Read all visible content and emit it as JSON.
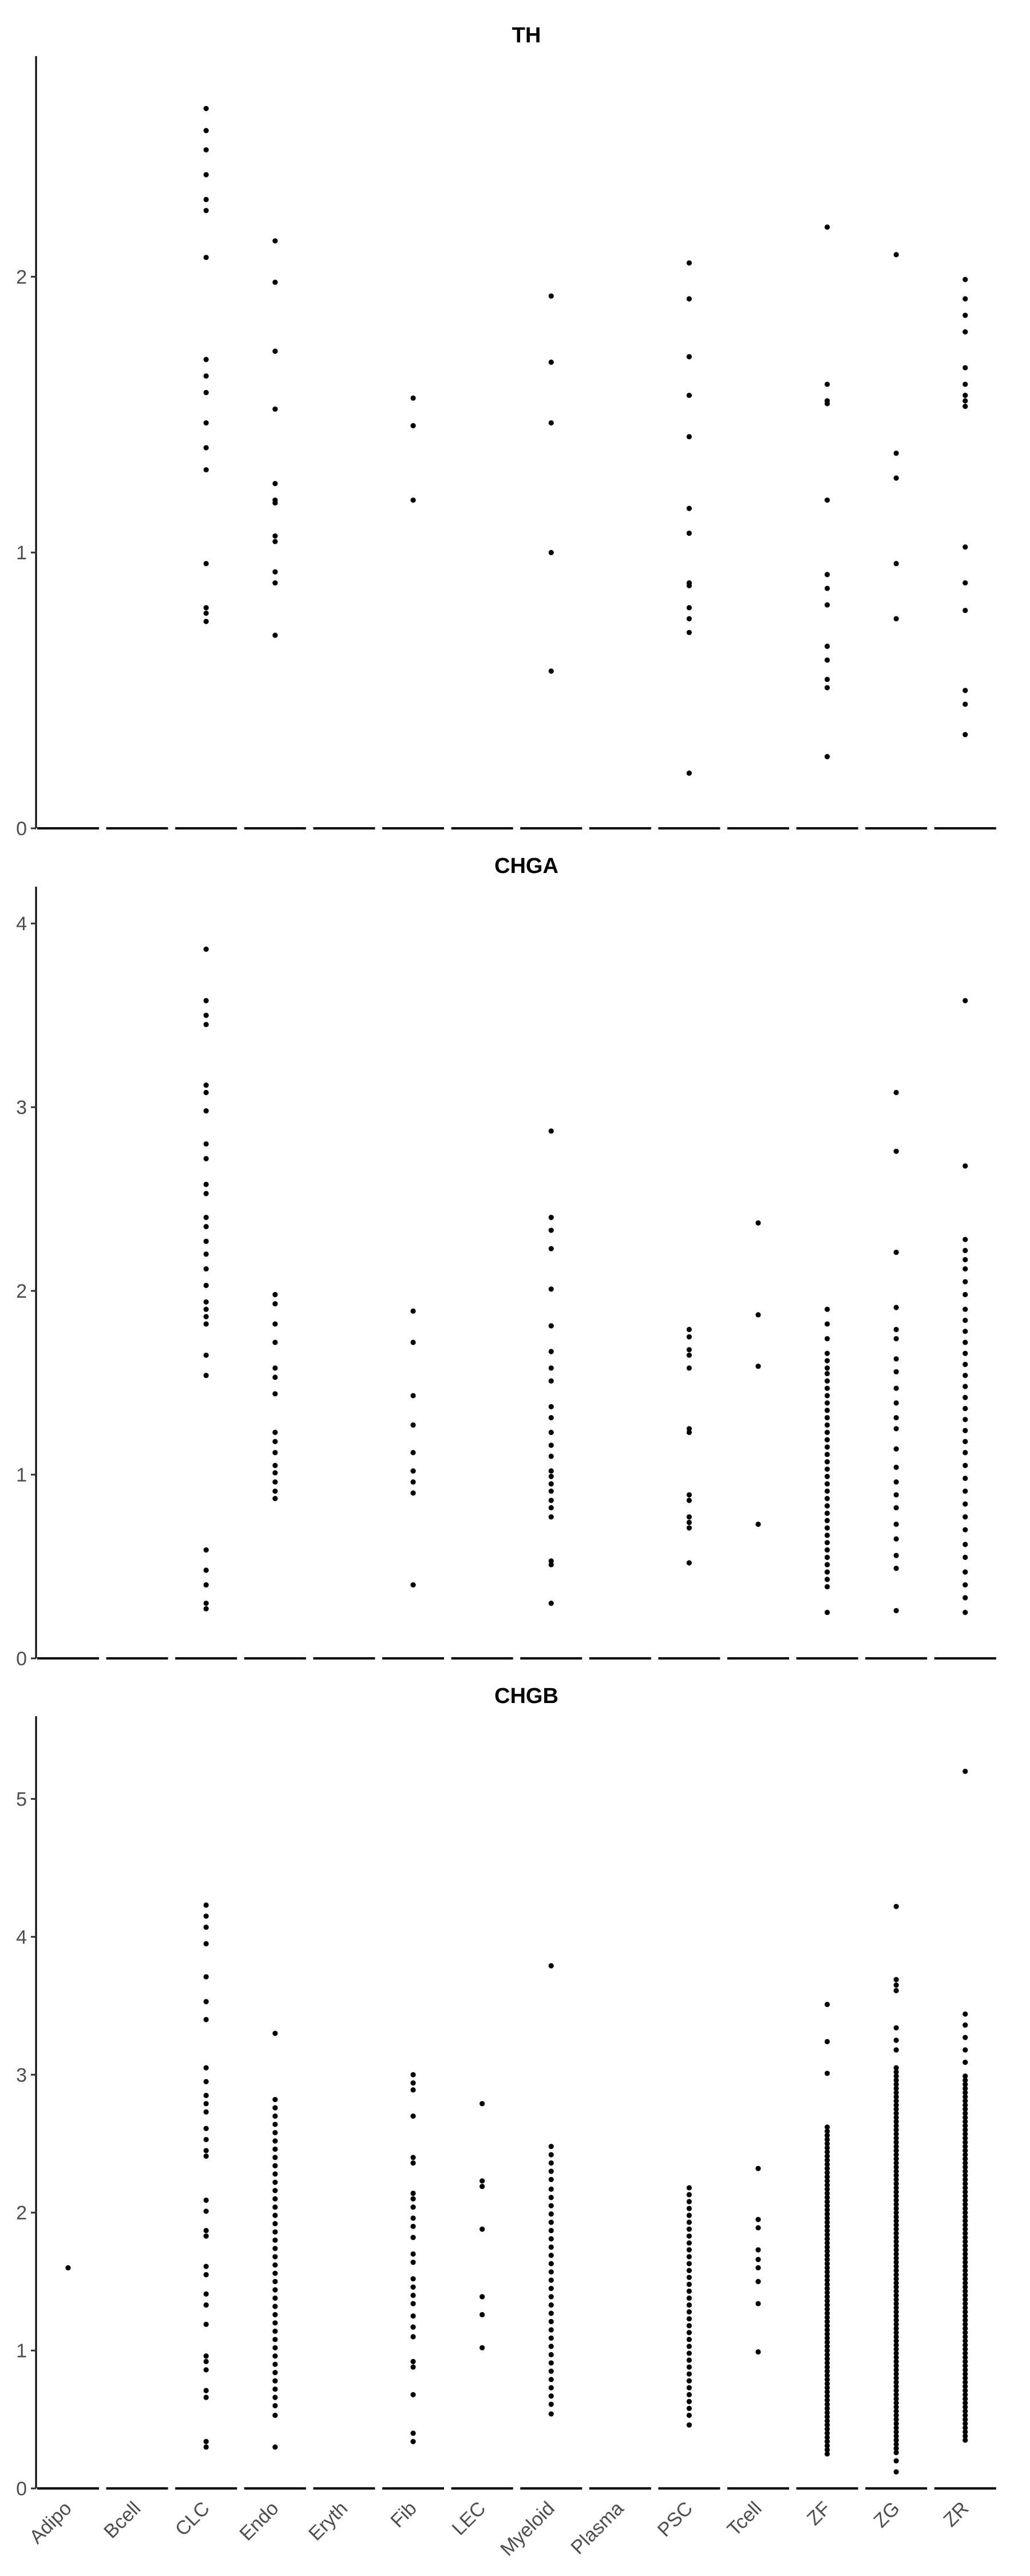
{
  "categories": [
    "Adipo",
    "Bcell",
    "CLC",
    "Endo",
    "Eryth",
    "Fib",
    "LEC",
    "Myeloid",
    "Plasma",
    "PSC",
    "Tcell",
    "ZF",
    "ZG",
    "ZR"
  ],
  "chart_data": [
    {
      "type": "scatter",
      "title": "TH",
      "xlabel": "",
      "ylabel": "",
      "ylim": [
        0,
        2.8
      ],
      "yticks": [
        0,
        1,
        2
      ],
      "categories": [
        "Adipo",
        "Bcell",
        "CLC",
        "Endo",
        "Eryth",
        "Fib",
        "LEC",
        "Myeloid",
        "Plasma",
        "PSC",
        "Tcell",
        "ZF",
        "ZG",
        "ZR"
      ],
      "points": {
        "Adipo": [],
        "Bcell": [],
        "CLC": [
          2.61,
          2.53,
          2.46,
          2.37,
          2.28,
          2.24,
          2.07,
          1.7,
          1.64,
          1.58,
          1.47,
          1.38,
          1.3,
          0.96,
          0.8,
          0.78,
          0.75
        ],
        "Endo": [
          2.13,
          1.98,
          1.73,
          1.52,
          1.25,
          1.19,
          1.18,
          1.06,
          1.04,
          0.93,
          0.89,
          0.7
        ],
        "Eryth": [],
        "Fib": [
          1.56,
          1.46,
          1.19
        ],
        "LEC": [],
        "Myeloid": [
          1.93,
          1.69,
          1.47,
          1.0,
          0.57
        ],
        "Plasma": [],
        "PSC": [
          2.05,
          1.92,
          1.71,
          1.57,
          1.42,
          1.16,
          1.07,
          0.89,
          0.88,
          0.8,
          0.76,
          0.71,
          0.2
        ],
        "Tcell": [],
        "ZF": [
          2.18,
          1.61,
          1.55,
          1.54,
          1.19,
          0.92,
          0.87,
          0.81,
          0.66,
          0.61,
          0.54,
          0.51,
          0.26
        ],
        "ZG": [
          2.08,
          1.36,
          1.27,
          0.96,
          0.76
        ],
        "ZR": [
          1.99,
          1.92,
          1.86,
          1.8,
          1.67,
          1.61,
          1.57,
          1.55,
          1.53,
          1.02,
          0.89,
          0.79,
          0.5,
          0.45,
          0.34
        ]
      }
    },
    {
      "type": "scatter",
      "title": "CHGA",
      "xlabel": "",
      "ylabel": "",
      "ylim": [
        0,
        4.2
      ],
      "yticks": [
        0,
        1,
        2,
        3,
        4
      ],
      "categories": [
        "Adipo",
        "Bcell",
        "CLC",
        "Endo",
        "Eryth",
        "Fib",
        "LEC",
        "Myeloid",
        "Plasma",
        "PSC",
        "Tcell",
        "ZF",
        "ZG",
        "ZR"
      ],
      "points": {
        "Adipo": [],
        "Bcell": [],
        "CLC": [
          3.86,
          3.58,
          3.5,
          3.45,
          3.12,
          3.08,
          2.98,
          2.8,
          2.72,
          2.58,
          2.53,
          2.4,
          2.35,
          2.27,
          2.2,
          2.12,
          2.03,
          1.94,
          1.9,
          1.86,
          1.82,
          1.65,
          1.54,
          0.59,
          0.48,
          0.4,
          0.3,
          0.27
        ],
        "Endo": [
          1.98,
          1.93,
          1.82,
          1.72,
          1.58,
          1.53,
          1.44,
          1.23,
          1.18,
          1.12,
          1.05,
          1.01,
          0.96,
          0.91,
          0.87
        ],
        "Eryth": [],
        "Fib": [
          1.89,
          1.72,
          1.43,
          1.27,
          1.12,
          1.02,
          0.96,
          0.9,
          0.4
        ],
        "LEC": [],
        "Myeloid": [
          2.87,
          2.4,
          2.33,
          2.23,
          2.01,
          1.81,
          1.67,
          1.58,
          1.51,
          1.37,
          1.31,
          1.23,
          1.16,
          1.1,
          1.02,
          0.99,
          0.95,
          0.91,
          0.86,
          0.82,
          0.77,
          0.53,
          0.51,
          0.3
        ],
        "Plasma": [],
        "PSC": [
          1.79,
          1.75,
          1.68,
          1.65,
          1.58,
          1.25,
          1.23,
          0.89,
          0.86,
          0.77,
          0.74,
          0.71,
          0.52
        ],
        "Tcell": [
          2.37,
          1.87,
          1.59,
          0.73
        ],
        "ZF": [
          1.9,
          1.82,
          1.74,
          1.66,
          1.62,
          1.58,
          1.55,
          1.51,
          1.47,
          1.43,
          1.39,
          1.35,
          1.31,
          1.27,
          1.23,
          1.19,
          1.15,
          1.11,
          1.07,
          1.03,
          0.99,
          0.95,
          0.91,
          0.87,
          0.83,
          0.79,
          0.75,
          0.71,
          0.67,
          0.63,
          0.59,
          0.55,
          0.51,
          0.47,
          0.43,
          0.39,
          0.25
        ],
        "ZG": [
          3.08,
          2.76,
          2.21,
          1.91,
          1.79,
          1.74,
          1.63,
          1.56,
          1.47,
          1.39,
          1.31,
          1.25,
          1.14,
          1.04,
          0.96,
          0.89,
          0.82,
          0.73,
          0.65,
          0.56,
          0.49,
          0.26
        ],
        "ZR": [
          3.58,
          2.68,
          2.28,
          2.22,
          2.17,
          2.12,
          2.05,
          1.98,
          1.9,
          1.84,
          1.78,
          1.72,
          1.66,
          1.6,
          1.54,
          1.48,
          1.42,
          1.36,
          1.3,
          1.24,
          1.18,
          1.12,
          1.05,
          0.98,
          0.91,
          0.84,
          0.77,
          0.7,
          0.62,
          0.55,
          0.47,
          0.4,
          0.33,
          0.25
        ]
      }
    },
    {
      "type": "scatter",
      "title": "CHGB",
      "xlabel": "",
      "ylabel": "",
      "ylim": [
        0,
        5.6
      ],
      "yticks": [
        0,
        1,
        2,
        3,
        4,
        5
      ],
      "categories": [
        "Adipo",
        "Bcell",
        "CLC",
        "Endo",
        "Eryth",
        "Fib",
        "LEC",
        "Myeloid",
        "Plasma",
        "PSC",
        "Tcell",
        "ZF",
        "ZG",
        "ZR"
      ],
      "points": {
        "Adipo": [
          1.6
        ],
        "Bcell": [],
        "CLC": [
          4.23,
          4.15,
          4.07,
          3.95,
          3.71,
          3.53,
          3.4,
          3.05,
          2.95,
          2.85,
          2.79,
          2.73,
          2.61,
          2.53,
          2.45,
          2.41,
          2.09,
          2.01,
          1.87,
          1.83,
          1.61,
          1.55,
          1.41,
          1.33,
          1.19,
          0.96,
          0.92,
          0.86,
          0.71,
          0.66,
          0.34,
          0.3
        ],
        "Endo": [
          3.3,
          2.82,
          2.76,
          2.7,
          2.64,
          2.58,
          2.52,
          2.46,
          2.4,
          2.34,
          2.28,
          2.22,
          2.16,
          2.1,
          2.04,
          1.98,
          1.92,
          1.86,
          1.8,
          1.74,
          1.68,
          1.62,
          1.56,
          1.5,
          1.44,
          1.38,
          1.32,
          1.26,
          1.2,
          1.14,
          1.08,
          1.02,
          0.96,
          0.9,
          0.84,
          0.78,
          0.72,
          0.66,
          0.6,
          0.53,
          0.3
        ],
        "Eryth": [],
        "Fib": [
          3.0,
          2.94,
          2.89,
          2.7,
          2.4,
          2.36,
          2.14,
          2.1,
          2.04,
          1.96,
          1.9,
          1.82,
          1.7,
          1.64,
          1.52,
          1.46,
          1.4,
          1.34,
          1.25,
          1.17,
          1.1,
          0.92,
          0.88,
          0.68,
          0.4,
          0.34
        ],
        "LEC": [
          2.79,
          2.23,
          2.19,
          1.88,
          1.39,
          1.26,
          1.02
        ],
        "Myeloid": [
          3.79,
          2.48,
          2.42,
          2.36,
          2.3,
          2.24,
          2.17,
          2.11,
          2.05,
          1.99,
          1.93,
          1.87,
          1.81,
          1.75,
          1.69,
          1.63,
          1.57,
          1.51,
          1.45,
          1.39,
          1.33,
          1.27,
          1.21,
          1.15,
          1.09,
          1.03,
          0.97,
          0.91,
          0.85,
          0.79,
          0.73,
          0.67,
          0.61,
          0.54
        ],
        "Plasma": [],
        "PSC": [
          2.18,
          2.13,
          2.08,
          2.03,
          1.98,
          1.93,
          1.88,
          1.83,
          1.78,
          1.73,
          1.68,
          1.63,
          1.58,
          1.53,
          1.48,
          1.43,
          1.38,
          1.33,
          1.28,
          1.23,
          1.18,
          1.13,
          1.08,
          1.03,
          0.98,
          0.93,
          0.88,
          0.83,
          0.78,
          0.73,
          0.68,
          0.63,
          0.58,
          0.53,
          0.46
        ],
        "Tcell": [
          2.32,
          1.95,
          1.89,
          1.73,
          1.66,
          1.6,
          1.5,
          1.34,
          0.99
        ],
        "ZF": [
          3.51,
          3.24,
          3.01,
          2.62,
          2.59,
          2.56,
          2.53,
          2.5,
          2.47,
          2.44,
          2.41,
          2.38,
          2.35,
          2.32,
          2.29,
          2.26,
          2.23,
          2.2,
          2.17,
          2.14,
          2.11,
          2.08,
          2.05,
          2.02,
          1.99,
          1.96,
          1.93,
          1.9,
          1.87,
          1.84,
          1.81,
          1.78,
          1.75,
          1.72,
          1.69,
          1.66,
          1.63,
          1.6,
          1.57,
          1.54,
          1.51,
          1.48,
          1.45,
          1.42,
          1.39,
          1.36,
          1.33,
          1.3,
          1.27,
          1.24,
          1.21,
          1.18,
          1.15,
          1.12,
          1.09,
          1.06,
          1.03,
          1.0,
          0.97,
          0.94,
          0.91,
          0.88,
          0.85,
          0.82,
          0.79,
          0.76,
          0.73,
          0.7,
          0.67,
          0.64,
          0.61,
          0.58,
          0.55,
          0.52,
          0.49,
          0.46,
          0.43,
          0.4,
          0.37,
          0.34,
          0.31,
          0.28,
          0.25
        ],
        "ZG": [
          4.22,
          3.69,
          3.65,
          3.61,
          3.34,
          3.25,
          3.18,
          3.05,
          3.02,
          2.99,
          2.96,
          2.93,
          2.9,
          2.87,
          2.84,
          2.81,
          2.78,
          2.75,
          2.72,
          2.69,
          2.66,
          2.63,
          2.6,
          2.57,
          2.54,
          2.51,
          2.48,
          2.45,
          2.42,
          2.39,
          2.36,
          2.33,
          2.3,
          2.27,
          2.24,
          2.21,
          2.18,
          2.15,
          2.12,
          2.09,
          2.06,
          2.03,
          2.0,
          1.97,
          1.94,
          1.91,
          1.88,
          1.85,
          1.82,
          1.79,
          1.76,
          1.73,
          1.7,
          1.67,
          1.64,
          1.61,
          1.58,
          1.55,
          1.52,
          1.49,
          1.46,
          1.43,
          1.4,
          1.37,
          1.34,
          1.31,
          1.28,
          1.25,
          1.22,
          1.19,
          1.16,
          1.13,
          1.1,
          1.07,
          1.04,
          1.01,
          0.98,
          0.95,
          0.92,
          0.89,
          0.86,
          0.83,
          0.8,
          0.77,
          0.74,
          0.71,
          0.68,
          0.65,
          0.62,
          0.59,
          0.56,
          0.53,
          0.5,
          0.47,
          0.44,
          0.41,
          0.38,
          0.35,
          0.32,
          0.29,
          0.26,
          0.2,
          0.12
        ],
        "ZR": [
          5.2,
          3.44,
          3.36,
          3.27,
          3.18,
          3.09,
          2.99,
          2.96,
          2.93,
          2.9,
          2.87,
          2.84,
          2.81,
          2.78,
          2.75,
          2.72,
          2.69,
          2.66,
          2.63,
          2.6,
          2.57,
          2.54,
          2.51,
          2.48,
          2.45,
          2.42,
          2.39,
          2.36,
          2.33,
          2.3,
          2.27,
          2.24,
          2.21,
          2.18,
          2.15,
          2.12,
          2.09,
          2.06,
          2.03,
          2.0,
          1.97,
          1.94,
          1.91,
          1.88,
          1.85,
          1.82,
          1.79,
          1.76,
          1.73,
          1.7,
          1.67,
          1.64,
          1.61,
          1.58,
          1.55,
          1.52,
          1.49,
          1.46,
          1.43,
          1.4,
          1.37,
          1.34,
          1.31,
          1.28,
          1.25,
          1.22,
          1.19,
          1.16,
          1.13,
          1.1,
          1.07,
          1.04,
          1.01,
          0.98,
          0.95,
          0.92,
          0.89,
          0.86,
          0.83,
          0.8,
          0.77,
          0.74,
          0.71,
          0.68,
          0.65,
          0.62,
          0.59,
          0.56,
          0.53,
          0.5,
          0.47,
          0.44,
          0.41,
          0.38,
          0.35
        ]
      }
    }
  ]
}
